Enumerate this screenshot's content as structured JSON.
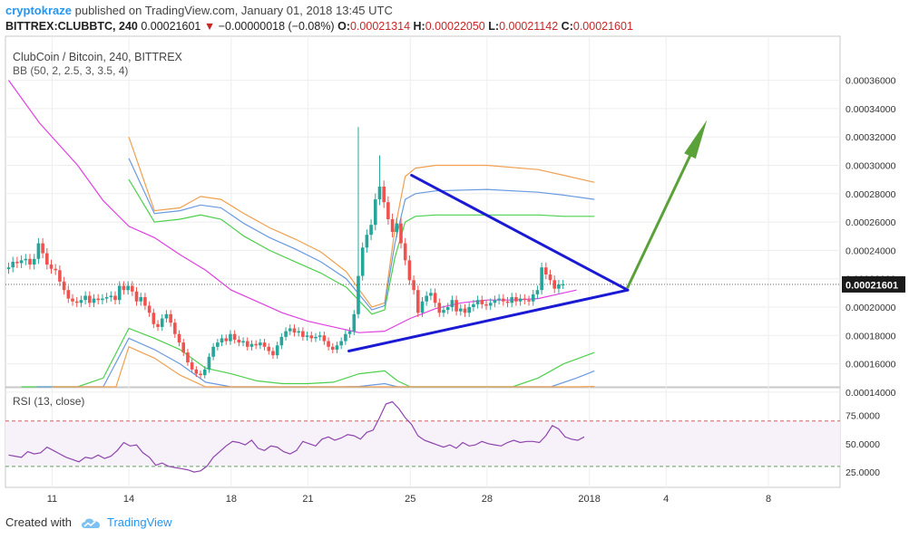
{
  "header": {
    "author": "cryptokraze",
    "published_text": "published on TradingView.com, January 01, 2018 13:45 UTC",
    "symbol": "BITTREX:CLUBBTC, 240",
    "last": "0.00021601",
    "change_arrow": "▼",
    "change": "−0.00000018 (−0.08%)",
    "ohlc": {
      "o_label": "O:",
      "o": "0.00021314",
      "h_label": "H:",
      "h": "0.00022050",
      "l_label": "L:",
      "l": "0.00021142",
      "c_label": "C:",
      "c": "0.00021601"
    }
  },
  "legend": {
    "title": "ClubCoin / Bitcoin, 240, BITTREX",
    "indicator": "BB (50, 2, 2.5, 3, 3.5, 4)"
  },
  "rsi": {
    "label": "RSI (13, close)",
    "levels": [
      75,
      50,
      25
    ],
    "level_labels": [
      "75.0000",
      "50.0000",
      "25.0000"
    ],
    "overbought": 70,
    "oversold": 30
  },
  "price_axis": {
    "ticks": [
      0.00036,
      0.00034,
      0.00032,
      0.0003,
      0.00028,
      0.00026,
      0.00024,
      0.00022,
      0.0002,
      0.00018,
      0.00016,
      0.00014
    ],
    "tick_labels": [
      "0.00036000",
      "0.00034000",
      "0.00032000",
      "0.00030000",
      "0.00028000",
      "0.00026000",
      "0.00024000",
      "0.00022000",
      "0.00020000",
      "0.00018000",
      "0.00016000",
      "0.00014000"
    ],
    "last_price_label": "0.00021601",
    "last_price": 0.00021601
  },
  "time_axis": {
    "labels": [
      "11",
      "14",
      "18",
      "21",
      "25",
      "28",
      "2018",
      "4",
      "8"
    ],
    "days_offset": [
      11,
      14,
      18,
      21,
      25,
      28,
      32,
      35,
      39
    ]
  },
  "footer": {
    "created_with": "Created with",
    "brand": "TradingView"
  },
  "colors": {
    "up": "#26a69a",
    "down": "#ef5350",
    "triangle": "#1a1ad4",
    "arrow": "#5aa13a",
    "bb_orange": "#f0a050",
    "bb_blue": "#6a9ae0",
    "bb_green": "#4cd04c",
    "bb_basis": "#e040e0",
    "rsi": "#8e44ad",
    "price_label_bg": "#1a1a1a"
  },
  "chart_data": {
    "type": "candlestick",
    "title": "ClubCoin / Bitcoin, 240, BITTREX",
    "xlabel": "",
    "ylabel": "",
    "ylim": [
      0.000125,
      0.000375
    ],
    "grid": true,
    "close_series": {
      "name": "CLUBBTC close",
      "x_start_day": 9.3,
      "step_days": 0.1667,
      "values": [
        0.000228,
        0.000232,
        0.000231,
        0.000233,
        0.000234,
        0.00023,
        0.000234,
        0.000245,
        0.000238,
        0.00023,
        0.000227,
        0.000226,
        0.000218,
        0.000212,
        0.000206,
        0.000204,
        0.000203,
        0.000205,
        0.000208,
        0.000203,
        0.000206,
        0.000205,
        0.000206,
        0.000207,
        0.000208,
        0.000205,
        0.000215,
        0.000212,
        0.000215,
        0.000211,
        0.000204,
        0.000207,
        0.000201,
        0.000196,
        0.000188,
        0.000186,
        0.000192,
        0.000195,
        0.000189,
        0.000181,
        0.000175,
        0.000168,
        0.000161,
        0.000156,
        0.000153,
        0.000152,
        0.000156,
        0.000165,
        0.000172,
        0.000175,
        0.000178,
        0.000176,
        0.000181,
        0.000177,
        0.000175,
        0.000176,
        0.000172,
        0.000174,
        0.000173,
        0.000175,
        0.000172,
        0.000169,
        0.000166,
        0.000173,
        0.000179,
        0.000183,
        0.000185,
        0.000182,
        0.000183,
        0.000179,
        0.00018,
        0.000178,
        0.000179,
        0.00018,
        0.000176,
        0.000172,
        0.00017,
        0.000173,
        0.000176,
        0.000181,
        0.000183,
        0.000195,
        0.000222,
        0.000242,
        0.000251,
        0.000258,
        0.000276,
        0.000285,
        0.000274,
        0.000262,
        0.000253,
        0.000259,
        0.000245,
        0.000233,
        0.000219,
        0.000212,
        0.000196,
        0.000204,
        0.000208,
        0.00021,
        0.000203,
        0.000196,
        0.000198,
        0.0002,
        0.000205,
        0.000197,
        0.000199,
        0.000196,
        0.0002,
        0.000202,
        0.000205,
        0.000202,
        0.000201,
        0.000203,
        0.000205,
        0.000206,
        0.000204,
        0.000203,
        0.000207,
        0.000204,
        0.000206,
        0.000205,
        0.000204,
        0.000209,
        0.000212,
        0.000228,
        0.000223,
        0.000219,
        0.000213,
        0.000216,
        0.000216
      ]
    },
    "bollinger_bands": {
      "basis": [
        [
          9.3,
          0.00036
        ],
        [
          10.5,
          0.00033
        ],
        [
          12,
          0.0003
        ],
        [
          13,
          0.000275
        ],
        [
          14,
          0.000257
        ],
        [
          15,
          0.000249
        ],
        [
          16,
          0.000237
        ],
        [
          17,
          0.000226
        ],
        [
          18,
          0.000212
        ],
        [
          19,
          0.000204
        ],
        [
          20,
          0.000196
        ],
        [
          21,
          0.00019
        ],
        [
          22,
          0.000186
        ],
        [
          23,
          0.000182
        ],
        [
          24,
          0.000183
        ],
        [
          25,
          0.000192
        ],
        [
          26,
          0.000199
        ],
        [
          27,
          0.000203
        ],
        [
          28,
          0.000205
        ],
        [
          29,
          0.000205
        ],
        [
          30,
          0.000206
        ],
        [
          31,
          0.00021
        ],
        [
          31.5,
          0.000212
        ]
      ],
      "upper_green": [
        [
          14,
          0.00029
        ],
        [
          15,
          0.00026
        ],
        [
          16,
          0.000262
        ],
        [
          16.8,
          0.000265
        ],
        [
          17.6,
          0.000262
        ],
        [
          18.5,
          0.00025
        ],
        [
          19.5,
          0.00024
        ],
        [
          20.5,
          0.000232
        ],
        [
          21.5,
          0.000224
        ],
        [
          22.5,
          0.000214
        ],
        [
          23.5,
          0.000195
        ],
        [
          24,
          0.000198
        ],
        [
          24.4,
          0.000235
        ],
        [
          24.8,
          0.00026
        ],
        [
          25.2,
          0.000264
        ],
        [
          26,
          0.000265
        ],
        [
          28,
          0.000265
        ],
        [
          30,
          0.000265
        ],
        [
          31,
          0.000264
        ],
        [
          32.2,
          0.000264
        ]
      ],
      "upper_blue": [
        [
          14,
          0.000305
        ],
        [
          15,
          0.000266
        ],
        [
          16,
          0.000268
        ],
        [
          16.8,
          0.000272
        ],
        [
          17.6,
          0.00027
        ],
        [
          18.5,
          0.000259
        ],
        [
          19.5,
          0.000249
        ],
        [
          20.5,
          0.000241
        ],
        [
          21.5,
          0.000232
        ],
        [
          22.5,
          0.00022
        ],
        [
          23.5,
          0.000198
        ],
        [
          24,
          0.000201
        ],
        [
          24.4,
          0.000245
        ],
        [
          24.8,
          0.000276
        ],
        [
          25.2,
          0.00028
        ],
        [
          26,
          0.000282
        ],
        [
          28,
          0.000283
        ],
        [
          30,
          0.000281
        ],
        [
          31,
          0.000279
        ],
        [
          32.2,
          0.000276
        ]
      ],
      "upper_orange": [
        [
          14,
          0.00032
        ],
        [
          15,
          0.000268
        ],
        [
          16,
          0.00027
        ],
        [
          16.8,
          0.000278
        ],
        [
          17.6,
          0.000276
        ],
        [
          18.5,
          0.000266
        ],
        [
          19.5,
          0.000256
        ],
        [
          20.5,
          0.000248
        ],
        [
          21.5,
          0.000239
        ],
        [
          22.5,
          0.000225
        ],
        [
          23.5,
          0.0002
        ],
        [
          24,
          0.000203
        ],
        [
          24.4,
          0.000255
        ],
        [
          24.8,
          0.000292
        ],
        [
          25.2,
          0.000298
        ],
        [
          26,
          0.0003
        ],
        [
          28,
          0.0003
        ],
        [
          30,
          0.000297
        ],
        [
          31,
          0.000293
        ],
        [
          32.2,
          0.000288
        ]
      ],
      "lower_green": [
        [
          9.8,
          0.000125
        ],
        [
          12,
          0.000135
        ],
        [
          13,
          0.00015
        ],
        [
          14,
          0.000185
        ],
        [
          15,
          0.000178
        ],
        [
          16,
          0.00017
        ],
        [
          17,
          0.000157
        ],
        [
          18,
          0.000153
        ],
        [
          19,
          0.000148
        ],
        [
          20,
          0.000146
        ],
        [
          21,
          0.000146
        ],
        [
          22,
          0.000147
        ],
        [
          23,
          0.000153
        ],
        [
          24,
          0.000155
        ],
        [
          24.5,
          0.000148
        ],
        [
          25,
          0.000125
        ],
        [
          27,
          0.000128
        ],
        [
          28,
          0.000133
        ],
        [
          29,
          0.00014
        ],
        [
          30,
          0.00015
        ],
        [
          31,
          0.00016
        ],
        [
          32.2,
          0.000168
        ]
      ],
      "lower_blue": [
        [
          10.4,
          0.000125
        ],
        [
          12,
          0.000127
        ],
        [
          13,
          0.000138
        ],
        [
          14,
          0.000178
        ],
        [
          15,
          0.00017
        ],
        [
          16,
          0.00016
        ],
        [
          17,
          0.000147
        ],
        [
          18,
          0.000143
        ],
        [
          19,
          0.000139
        ],
        [
          20,
          0.000136
        ],
        [
          21,
          0.000137
        ],
        [
          22,
          0.000138
        ],
        [
          23,
          0.000144
        ],
        [
          24,
          0.000146
        ],
        [
          24.5,
          0.000138
        ],
        [
          24.8,
          0.000125
        ],
        [
          28.5,
          0.000125
        ],
        [
          29.5,
          0.000133
        ],
        [
          30.5,
          0.000142
        ],
        [
          31.5,
          0.00015
        ],
        [
          32.2,
          0.000155
        ]
      ],
      "lower_orange": [
        [
          11,
          0.000125
        ],
        [
          12.5,
          0.000122
        ],
        [
          13.5,
          0.000132
        ],
        [
          14,
          0.000172
        ],
        [
          15,
          0.000164
        ],
        [
          16,
          0.000152
        ],
        [
          17,
          0.000141
        ],
        [
          18,
          0.000137
        ],
        [
          19,
          0.000133
        ],
        [
          20,
          0.00013
        ],
        [
          21,
          0.000131
        ],
        [
          22,
          0.000133
        ],
        [
          23,
          0.000138
        ],
        [
          24,
          0.00014
        ],
        [
          24.5,
          0.000132
        ],
        [
          24.7,
          0.000125
        ],
        [
          29.5,
          0.000125
        ],
        [
          30.5,
          0.000131
        ],
        [
          31.5,
          0.00014
        ],
        [
          32.2,
          0.000144
        ]
      ]
    },
    "drawings": {
      "triangle_upper": [
        [
          25.05,
          0.000293
        ],
        [
          33.5,
          0.000212
        ]
      ],
      "triangle_lower": [
        [
          22.6,
          0.000169
        ],
        [
          33.5,
          0.000212
        ]
      ],
      "projection_arrow": [
        [
          33.5,
          0.000214
        ],
        [
          36.6,
          0.000332
        ]
      ]
    },
    "rsi_series": {
      "name": "RSI (13, close)",
      "x_start_day": 9.3,
      "step_days": 0.25,
      "values": [
        40,
        39,
        38,
        43,
        41,
        42,
        47,
        44,
        41,
        38,
        36,
        34,
        38,
        37,
        40,
        37,
        39,
        44,
        51,
        48,
        49,
        42,
        38,
        31,
        33,
        30,
        29,
        28,
        27,
        25,
        26,
        30,
        38,
        43,
        48,
        52,
        51,
        49,
        53,
        46,
        44,
        48,
        47,
        43,
        41,
        44,
        52,
        50,
        48,
        54,
        56,
        53,
        55,
        58,
        57,
        54,
        60,
        62,
        73,
        85,
        87,
        81,
        73,
        67,
        57,
        53,
        51,
        49,
        47,
        49,
        46,
        51,
        48,
        49,
        52,
        50,
        49,
        48,
        51,
        53,
        51,
        52,
        52,
        51,
        57,
        66,
        63,
        56,
        54,
        53,
        56
      ]
    }
  }
}
